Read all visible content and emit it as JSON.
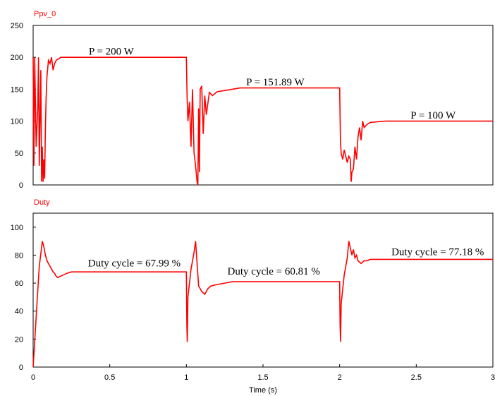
{
  "chart_data": [
    {
      "type": "line",
      "title": "Ppv_0",
      "xlabel": "",
      "ylabel": "",
      "xlim": [
        0,
        3
      ],
      "ylim": [
        0,
        250
      ],
      "yticks": [
        "0",
        "50",
        "100",
        "150",
        "200",
        "250"
      ],
      "grid": false,
      "line_color": "#ff0000",
      "annotations": [
        {
          "text": "P = 200 W",
          "x": 0.51,
          "y": 204
        },
        {
          "text": "P = 151.89 W",
          "x": 1.58,
          "y": 156
        },
        {
          "text": "P = 100 W",
          "x": 2.61,
          "y": 104
        }
      ],
      "series": [
        {
          "x": [
            0.0,
            0.005,
            0.01,
            0.02,
            0.03,
            0.035,
            0.04,
            0.05,
            0.055,
            0.06,
            0.065,
            0.07,
            0.075,
            0.08,
            0.085,
            0.09,
            0.1,
            0.11,
            0.12,
            0.13,
            0.14,
            0.15,
            0.16,
            0.17,
            0.18,
            0.2,
            0.22,
            0.25,
            0.3,
            0.4,
            0.6,
            0.8,
            1.0,
            1.005,
            1.01,
            1.02,
            1.03,
            1.04,
            1.05,
            1.06,
            1.07,
            1.075,
            1.08,
            1.085,
            1.09,
            1.1,
            1.11,
            1.12,
            1.13,
            1.15,
            1.17,
            1.2,
            1.25,
            1.3,
            1.35,
            1.4,
            1.5,
            1.7,
            1.9,
            2.0,
            2.005,
            2.01,
            2.02,
            2.03,
            2.05,
            2.06,
            2.07,
            2.075,
            2.08,
            2.09,
            2.1,
            2.11,
            2.12,
            2.13,
            2.14,
            2.15,
            2.16,
            2.18,
            2.2,
            2.25,
            2.3,
            2.4,
            2.6,
            2.8,
            3.0
          ],
          "y": [
            200,
            30,
            200,
            60,
            120,
            200,
            30,
            180,
            5,
            60,
            5,
            40,
            10,
            90,
            140,
            170,
            195,
            190,
            200,
            180,
            190,
            195,
            197,
            198,
            200,
            200,
            200,
            200,
            200,
            200,
            200,
            200,
            200,
            135,
            100,
            130,
            60,
            150,
            50,
            30,
            5,
            0,
            120,
            20,
            150,
            155,
            80,
            140,
            110,
            145,
            140,
            146,
            148,
            150,
            152,
            152,
            152,
            152,
            152,
            152,
            70,
            50,
            40,
            55,
            35,
            45,
            40,
            5,
            20,
            25,
            60,
            40,
            75,
            90,
            70,
            100,
            90,
            95,
            98,
            99,
            100,
            100,
            100,
            100,
            100
          ]
        }
      ]
    },
    {
      "type": "line",
      "title": "Duty",
      "xlabel": "Time (s)",
      "ylabel": "",
      "xlim": [
        0,
        3
      ],
      "ylim": [
        0,
        110
      ],
      "xticks": [
        "0",
        "0.5",
        "1",
        "1.5",
        "2",
        "2.5",
        "3"
      ],
      "yticks": [
        "0",
        "20",
        "40",
        "60",
        "80",
        "100"
      ],
      "grid": false,
      "line_color": "#ff0000",
      "annotations": [
        {
          "text": "Duty cycle = 67.99 %",
          "x": 0.66,
          "y": 72
        },
        {
          "text": "Duty cycle = 60.81 %",
          "x": 1.57,
          "y": 66
        },
        {
          "text": "Duty cycle = 77.18 %",
          "x": 2.64,
          "y": 80
        }
      ],
      "series": [
        {
          "x": [
            0.0,
            0.01,
            0.02,
            0.03,
            0.04,
            0.05,
            0.06,
            0.07,
            0.08,
            0.09,
            0.1,
            0.11,
            0.12,
            0.13,
            0.14,
            0.15,
            0.16,
            0.18,
            0.2,
            0.22,
            0.25,
            0.3,
            0.4,
            0.6,
            0.8,
            1.0,
            1.003,
            1.006,
            1.01,
            1.03,
            1.05,
            1.06,
            1.07,
            1.08,
            1.09,
            1.1,
            1.12,
            1.14,
            1.16,
            1.2,
            1.25,
            1.3,
            1.4,
            1.5,
            1.7,
            1.9,
            2.0,
            2.003,
            2.006,
            2.01,
            2.03,
            2.05,
            2.06,
            2.08,
            2.09,
            2.1,
            2.11,
            2.12,
            2.13,
            2.14,
            2.15,
            2.16,
            2.18,
            2.2,
            2.25,
            2.3,
            2.4,
            2.6,
            2.8,
            3.0
          ],
          "y": [
            0,
            18,
            36,
            54,
            72,
            81,
            90,
            86,
            80,
            76,
            74,
            72,
            70,
            68,
            67,
            65,
            64,
            65,
            66,
            67,
            68,
            68,
            68,
            68,
            68,
            68,
            30,
            18,
            50,
            70,
            82,
            90,
            74,
            58,
            56,
            54,
            52,
            56,
            58,
            59,
            60,
            61,
            61,
            61,
            61,
            61,
            61,
            30,
            18,
            45,
            66,
            78,
            90,
            80,
            84,
            78,
            80,
            76,
            75,
            74,
            75,
            76,
            76,
            77,
            77,
            77,
            77,
            77,
            77,
            77
          ]
        }
      ]
    }
  ]
}
